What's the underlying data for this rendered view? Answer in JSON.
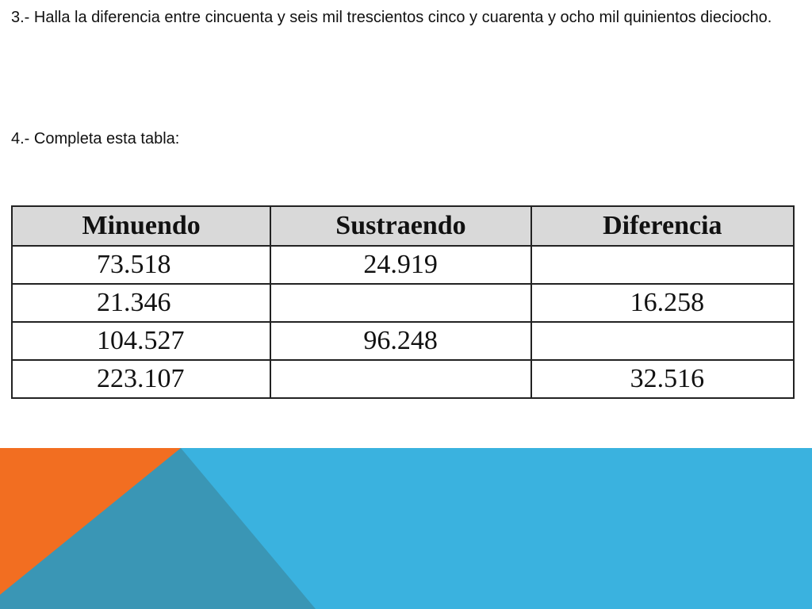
{
  "slide": {
    "question_3": "3.- Halla la diferencia entre cincuenta y seis mil trescientos cinco y cuarenta y ocho mil quinientos dieciocho.",
    "question_4": "4.- Completa esta tabla:",
    "table": {
      "headers": [
        "Minuendo",
        "Sustraendo",
        "Diferencia"
      ],
      "rows": [
        [
          "73.518",
          "24.919",
          ""
        ],
        [
          "21.346",
          "",
          "16.258"
        ],
        [
          "104.527",
          "96.248",
          ""
        ],
        [
          "223.107",
          "",
          "32.516"
        ]
      ]
    },
    "colors": {
      "orange": "#f26e21",
      "teal": "#3a96b5",
      "blue": "#3ab2df"
    }
  }
}
